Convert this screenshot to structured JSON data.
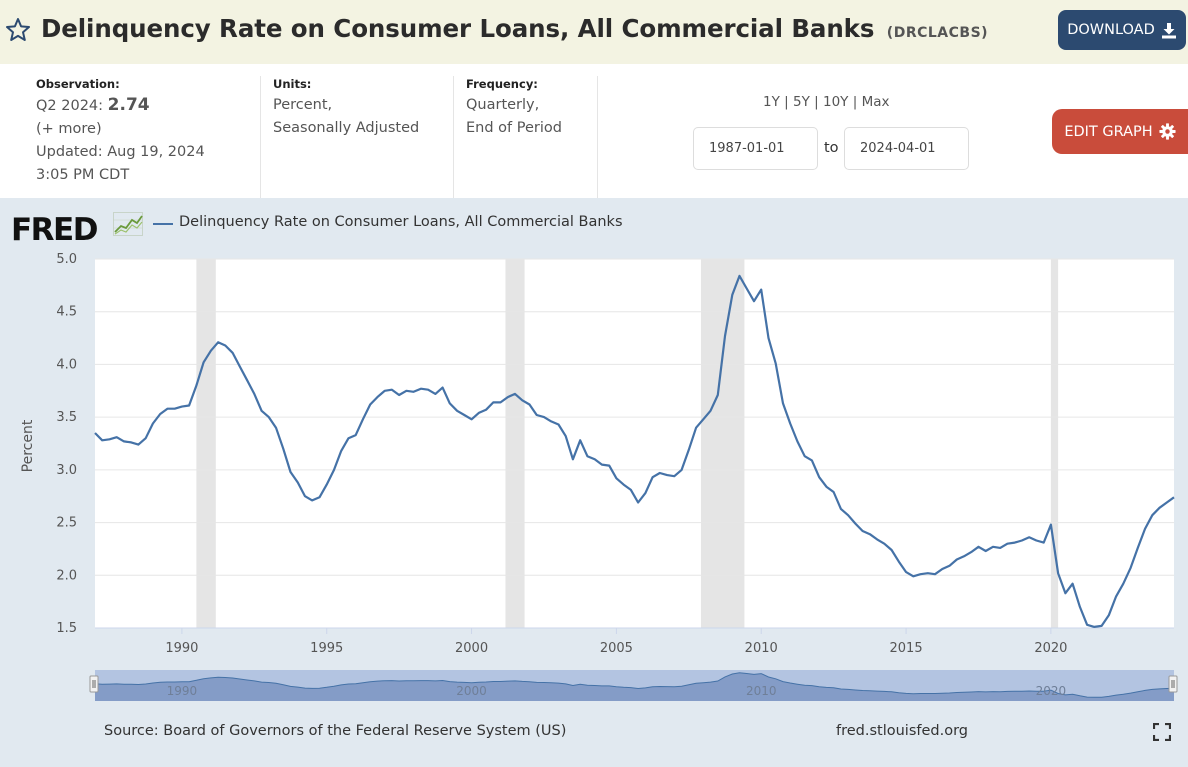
{
  "header": {
    "title": "Delinquency Rate on Consumer Loans, All Commercial Banks",
    "series_code": "(DRCLACBS)",
    "download_label": "DOWNLOAD"
  },
  "meta": {
    "observation_label": "Observation:",
    "observation_period": "Q2 2024:",
    "observation_value": "2.74",
    "more_link": "(+ more)",
    "updated_line1": "Updated: Aug 19, 2024",
    "updated_line2": "3:05 PM CDT",
    "units_label": "Units:",
    "units_line1": "Percent,",
    "units_line2": "Seasonally Adjusted",
    "frequency_label": "Frequency:",
    "frequency_line1": "Quarterly,",
    "frequency_line2": "End of Period"
  },
  "controls": {
    "range_1y": "1Y",
    "range_5y": "5Y",
    "range_10y": "10Y",
    "range_max": "Max",
    "separator": "|",
    "start_date": "1987-01-01",
    "to_label": "to",
    "end_date": "2024-04-01",
    "edit_graph_label": "EDIT GRAPH"
  },
  "footer": {
    "logo_text": "FRED",
    "source": "Source: Board of Governors of the Federal Reserve System (US)",
    "url": "fred.stlouisfed.org"
  },
  "colors": {
    "series_line": "#4572a7",
    "recession_band": "#e5e5e5",
    "download_button": "#2c4a70",
    "edit_button": "#c94c3b"
  },
  "chart_data": {
    "type": "line",
    "title": "Delinquency Rate on Consumer Loans, All Commercial Banks",
    "xlabel": "",
    "ylabel": "Percent",
    "xlim": [
      1987.0,
      2024.25
    ],
    "ylim": [
      1.5,
      5.0
    ],
    "yticks": [
      1.5,
      2.0,
      2.5,
      3.0,
      3.5,
      4.0,
      4.5,
      5.0
    ],
    "ytick_labels": [
      "1.5",
      "2.0",
      "2.5",
      "3.0",
      "3.5",
      "4.0",
      "4.5",
      "5.0"
    ],
    "xticks": [
      1990,
      1995,
      2000,
      2005,
      2010,
      2015,
      2020
    ],
    "xtick_labels": [
      "1990",
      "1995",
      "2000",
      "2005",
      "2010",
      "2015",
      "2020"
    ],
    "navigator_labels": [
      "1990",
      "2000",
      "2010",
      "2020"
    ],
    "grid": true,
    "legend": "top-left",
    "recessions": [
      [
        1990.5,
        1991.17
      ],
      [
        2001.17,
        2001.83
      ],
      [
        2007.92,
        2009.42
      ],
      [
        2020.0,
        2020.25
      ]
    ],
    "series": [
      {
        "name": "Delinquency Rate on Consumer Loans, All Commercial Banks",
        "x": [
          1987.0,
          1987.25,
          1987.5,
          1987.75,
          1988.0,
          1988.25,
          1988.5,
          1988.75,
          1989.0,
          1989.25,
          1989.5,
          1989.75,
          1990.0,
          1990.25,
          1990.5,
          1990.75,
          1991.0,
          1991.25,
          1991.5,
          1991.75,
          1992.0,
          1992.25,
          1992.5,
          1992.75,
          1993.0,
          1993.25,
          1993.5,
          1993.75,
          1994.0,
          1994.25,
          1994.5,
          1994.75,
          1995.0,
          1995.25,
          1995.5,
          1995.75,
          1996.0,
          1996.25,
          1996.5,
          1996.75,
          1997.0,
          1997.25,
          1997.5,
          1997.75,
          1998.0,
          1998.25,
          1998.5,
          1998.75,
          1999.0,
          1999.25,
          1999.5,
          1999.75,
          2000.0,
          2000.25,
          2000.5,
          2000.75,
          2001.0,
          2001.25,
          2001.5,
          2001.75,
          2002.0,
          2002.25,
          2002.5,
          2002.75,
          2003.0,
          2003.25,
          2003.5,
          2003.75,
          2004.0,
          2004.25,
          2004.5,
          2004.75,
          2005.0,
          2005.25,
          2005.5,
          2005.75,
          2006.0,
          2006.25,
          2006.5,
          2006.75,
          2007.0,
          2007.25,
          2007.5,
          2007.75,
          2008.0,
          2008.25,
          2008.5,
          2008.75,
          2009.0,
          2009.25,
          2009.5,
          2009.75,
          2010.0,
          2010.25,
          2010.5,
          2010.75,
          2011.0,
          2011.25,
          2011.5,
          2011.75,
          2012.0,
          2012.25,
          2012.5,
          2012.75,
          2013.0,
          2013.25,
          2013.5,
          2013.75,
          2014.0,
          2014.25,
          2014.5,
          2014.75,
          2015.0,
          2015.25,
          2015.5,
          2015.75,
          2016.0,
          2016.25,
          2016.5,
          2016.75,
          2017.0,
          2017.25,
          2017.5,
          2017.75,
          2018.0,
          2018.25,
          2018.5,
          2018.75,
          2019.0,
          2019.25,
          2019.5,
          2019.75,
          2020.0,
          2020.25,
          2020.5,
          2020.75,
          2021.0,
          2021.25,
          2021.5,
          2021.75,
          2022.0,
          2022.25,
          2022.5,
          2022.75,
          2023.0,
          2023.25,
          2023.5,
          2023.75,
          2024.0,
          2024.25
        ],
        "y": [
          3.35,
          3.28,
          3.29,
          3.31,
          3.27,
          3.26,
          3.24,
          3.3,
          3.44,
          3.53,
          3.58,
          3.58,
          3.6,
          3.61,
          3.8,
          4.02,
          4.13,
          4.21,
          4.18,
          4.11,
          3.98,
          3.85,
          3.72,
          3.56,
          3.5,
          3.4,
          3.2,
          2.98,
          2.88,
          2.75,
          2.71,
          2.74,
          2.86,
          3.0,
          3.18,
          3.3,
          3.33,
          3.48,
          3.62,
          3.69,
          3.75,
          3.76,
          3.71,
          3.75,
          3.74,
          3.77,
          3.76,
          3.72,
          3.78,
          3.63,
          3.56,
          3.52,
          3.48,
          3.54,
          3.57,
          3.64,
          3.64,
          3.69,
          3.72,
          3.66,
          3.62,
          3.52,
          3.5,
          3.46,
          3.43,
          3.32,
          3.1,
          3.28,
          3.13,
          3.1,
          3.05,
          3.04,
          2.92,
          2.86,
          2.81,
          2.69,
          2.78,
          2.93,
          2.97,
          2.95,
          2.94,
          3.0,
          3.19,
          3.4,
          3.48,
          3.56,
          3.71,
          4.27,
          4.66,
          4.84,
          4.72,
          4.6,
          4.71,
          4.25,
          4.01,
          3.63,
          3.44,
          3.27,
          3.13,
          3.09,
          2.93,
          2.84,
          2.79,
          2.63,
          2.57,
          2.49,
          2.42,
          2.39,
          2.34,
          2.3,
          2.24,
          2.13,
          2.03,
          1.99,
          2.01,
          2.02,
          2.01,
          2.06,
          2.09,
          2.15,
          2.18,
          2.22,
          2.27,
          2.23,
          2.27,
          2.26,
          2.3,
          2.31,
          2.33,
          2.36,
          2.33,
          2.31,
          2.48,
          2.02,
          1.83,
          1.92,
          1.7,
          1.53,
          1.51,
          1.52,
          1.62,
          1.8,
          1.92,
          2.07,
          2.26,
          2.44,
          2.57,
          2.64,
          2.69,
          2.74
        ]
      }
    ]
  }
}
